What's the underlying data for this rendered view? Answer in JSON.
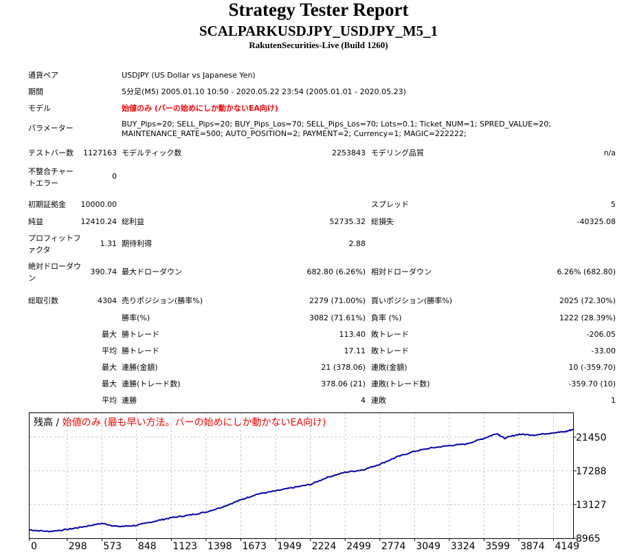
{
  "header": {
    "title": "Strategy Tester Report",
    "subtitle": "SCALPARKUSDJPY_USDJPY_M5_1",
    "build": "RakutenSecurities-Live (Build 1260)"
  },
  "info": {
    "symbol_label": "通貨ペア",
    "symbol_value": "USDJPY (US Dollar vs Japanese Yen)",
    "period_label": "期間",
    "period_value": "5分足(M5) 2005.01.10 10:50 - 2020.05.22 23:54 (2005.01.01 - 2020.05.23)",
    "model_label": "モデル",
    "model_value": "始値のみ (バーの始めにしか動かないEA向け)",
    "params_label": "パラメーター",
    "params_line1": "BUY_Pips=20; SELL_Pips=20; BUY_Pips_Los=70; SELL_Pips_Los=70; Lots=0.1; Ticket_NUM=1; SPRED_VALUE=20;",
    "params_line2": "MAINTENANCE_RATE=500; AUTO_POSITION=2; PAYMENT=2; Currency=1; MAGIC=222222;"
  },
  "bars": {
    "test_bars_label": "テストバー数",
    "test_bars_value": "1127163",
    "model_ticks_label": "モデルティック数",
    "model_ticks_value": "2253843",
    "quality_label": "モデリング品質",
    "quality_value": "n/a",
    "mismatch_label": "不整合チャートエラー",
    "mismatch_value": "0"
  },
  "stats": {
    "initial_deposit_label": "初期証拠金",
    "initial_deposit_value": "10000.00",
    "spread_label": "スプレッド",
    "spread_value": "5",
    "net_profit_label": "純益",
    "net_profit_value": "12410.24",
    "gross_profit_label": "総利益",
    "gross_profit_value": "52735.32",
    "gross_loss_label": "総損失",
    "gross_loss_value": "-40325.08",
    "profit_factor_label": "プロフィットファクタ",
    "profit_factor_value": "1.31",
    "expected_payoff_label": "期待利得",
    "expected_payoff_value": "2.88",
    "abs_drawdown_label": "絶対ドローダウン",
    "abs_drawdown_value": "390.74",
    "max_drawdown_label": "最大ドローダウン",
    "max_drawdown_value": "682.80 (6.26%)",
    "rel_drawdown_label": "相対ドローダウン",
    "rel_drawdown_value": "6.26% (682.80)"
  },
  "trades": {
    "total_label": "総取引数",
    "total_value": "4304",
    "short_label": "売りポジション(勝率%)",
    "short_value": "2279 (71.00%)",
    "long_label": "買いポジション(勝率%)",
    "long_value": "2025 (72.30%)",
    "win_label": "勝率(%)",
    "win_value": "3082 (71.61%)",
    "loss_label": "負率 (%)",
    "loss_value": "1222 (28.39%)",
    "max_label": "最大",
    "largest_win_label": "勝トレード",
    "largest_win_value": "113.40",
    "largest_loss_label": "敗トレード",
    "largest_loss_value": "-206.05",
    "avg_label": "平均",
    "avg_win_label": "勝トレード",
    "avg_win_value": "17.11",
    "avg_loss_label": "敗トレード",
    "avg_loss_value": "-33.00",
    "max2_label": "最大",
    "cons_wins_label": "連勝(金額)",
    "cons_wins_value": "21 (378.06)",
    "cons_losses_label": "連敗(金額)",
    "cons_losses_value": "10 (-359.70)",
    "max3_label": "最大",
    "cons_profit_label": "連勝(トレード数)",
    "cons_profit_value": "378.06 (21)",
    "cons_loss_label": "連敗(トレード数)",
    "cons_loss_value": "-359.70 (10)",
    "avg2_label": "平均",
    "avg_cons_wins_label": "連勝",
    "avg_cons_wins_value": "4",
    "avg_cons_losses_label": "連敗",
    "avg_cons_losses_value": "1"
  },
  "chart_legend": {
    "series": "残高 /",
    "model": "始値のみ (最も早い方法。バーの始めにしか動かないEA向け)"
  },
  "chart_data": {
    "type": "line",
    "x_ticks": [
      0,
      298,
      573,
      848,
      1123,
      1398,
      1673,
      1949,
      2224,
      2499,
      2774,
      3049,
      3324,
      3599,
      3874,
      4149
    ],
    "y_ticks": [
      8965,
      13127,
      17288,
      21450
    ],
    "xlim": [
      0,
      4304
    ],
    "ylim": [
      8965,
      24400
    ],
    "grid": true,
    "line_color": "#0000aa",
    "series": [
      {
        "x": [
          0,
          150,
          298,
          430,
          573,
          700,
          848,
          1000,
          1123,
          1260,
          1398,
          1540,
          1673,
          1800,
          1949,
          2080,
          2224,
          2360,
          2499,
          2640,
          2774,
          2910,
          3049,
          3180,
          3324,
          3460,
          3599,
          3700,
          3760,
          3874,
          4000,
          4149,
          4240,
          4304
        ],
        "y": [
          10000,
          9800,
          10050,
          10400,
          10800,
          10400,
          10550,
          11100,
          11500,
          11800,
          12200,
          12900,
          13700,
          14400,
          14800,
          15200,
          15600,
          16500,
          17100,
          17400,
          18100,
          19000,
          19700,
          20100,
          20400,
          20600,
          21300,
          21900,
          21300,
          21800,
          21700,
          22000,
          22100,
          22410
        ]
      }
    ]
  }
}
